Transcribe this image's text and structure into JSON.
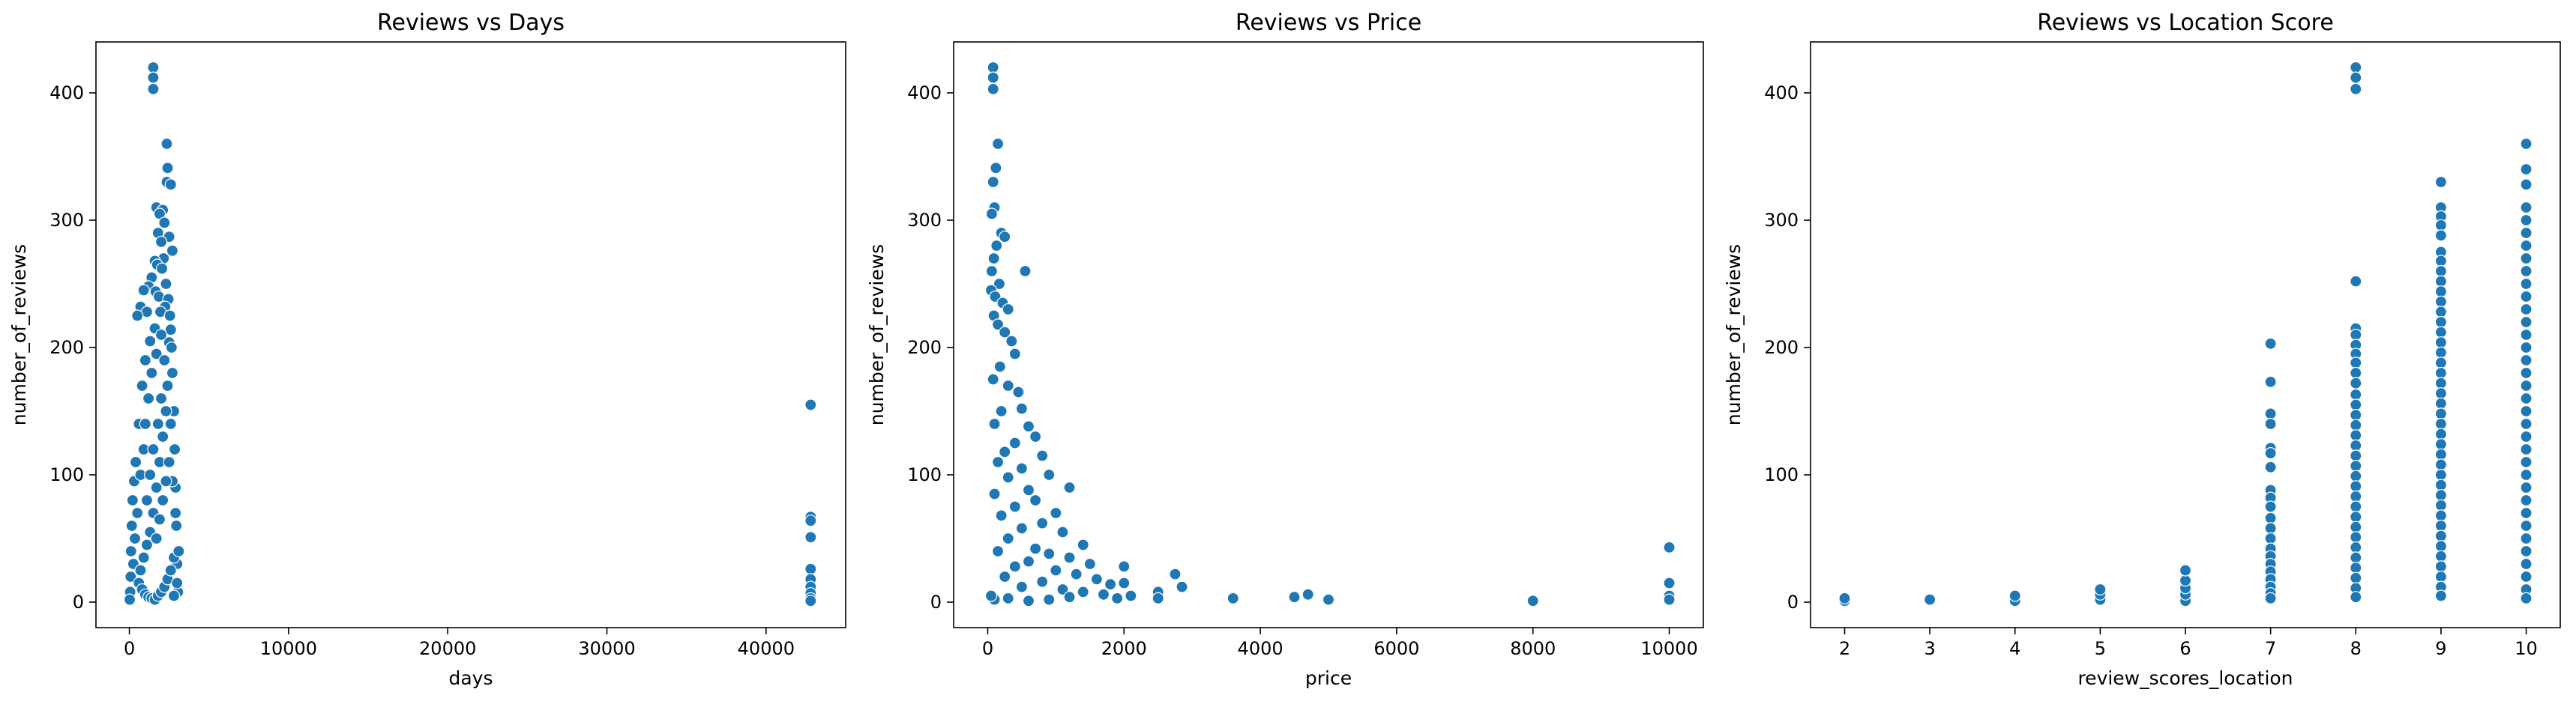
{
  "chart_data": [
    {
      "type": "scatter",
      "title": "Reviews vs Days",
      "xlabel": "days",
      "ylabel": "number_of_reviews",
      "xlim": [
        -2100,
        45000
      ],
      "ylim": [
        -20,
        440
      ],
      "xticks": [
        0,
        10000,
        20000,
        30000,
        40000
      ],
      "yticks": [
        0,
        100,
        200,
        300,
        400
      ],
      "xtick_labels": [
        "0",
        "10000",
        "20000",
        "30000",
        "40000"
      ],
      "ytick_labels": [
        "0",
        "100",
        "200",
        "300",
        "400"
      ],
      "color": "#1f77b4",
      "points": [
        [
          1500,
          420
        ],
        [
          1500,
          412
        ],
        [
          1500,
          403
        ],
        [
          2350,
          360
        ],
        [
          2400,
          341
        ],
        [
          2350,
          330
        ],
        [
          2600,
          328
        ],
        [
          1700,
          310
        ],
        [
          2100,
          308
        ],
        [
          1900,
          305
        ],
        [
          2200,
          298
        ],
        [
          1800,
          290
        ],
        [
          2500,
          287
        ],
        [
          2000,
          283
        ],
        [
          2700,
          276
        ],
        [
          2150,
          270
        ],
        [
          1600,
          268
        ],
        [
          1750,
          265
        ],
        [
          2050,
          262
        ],
        [
          1400,
          255
        ],
        [
          2300,
          250
        ],
        [
          1200,
          248
        ],
        [
          900,
          245
        ],
        [
          1650,
          244
        ],
        [
          1850,
          240
        ],
        [
          2450,
          238
        ],
        [
          2250,
          232
        ],
        [
          1950,
          228
        ],
        [
          700,
          232
        ],
        [
          1100,
          228
        ],
        [
          500,
          225
        ],
        [
          2550,
          225
        ],
        [
          2600,
          214
        ],
        [
          2500,
          204
        ],
        [
          2650,
          200
        ],
        [
          2700,
          180
        ],
        [
          2800,
          150
        ],
        [
          2850,
          120
        ],
        [
          2900,
          90
        ],
        [
          2950,
          60
        ],
        [
          3000,
          30
        ],
        [
          3050,
          8
        ],
        [
          300,
          95
        ],
        [
          200,
          80
        ],
        [
          150,
          60
        ],
        [
          100,
          40
        ],
        [
          80,
          20
        ],
        [
          50,
          8
        ],
        [
          20,
          2
        ],
        [
          400,
          110
        ],
        [
          600,
          140
        ],
        [
          800,
          170
        ],
        [
          1000,
          190
        ],
        [
          1300,
          205
        ],
        [
          1600,
          215
        ],
        [
          1400,
          180
        ],
        [
          1200,
          160
        ],
        [
          1000,
          140
        ],
        [
          900,
          120
        ],
        [
          700,
          100
        ],
        [
          500,
          70
        ],
        [
          350,
          50
        ],
        [
          250,
          30
        ],
        [
          1700,
          195
        ],
        [
          2000,
          210
        ],
        [
          2200,
          190
        ],
        [
          2400,
          170
        ],
        [
          2600,
          140
        ],
        [
          2300,
          150
        ],
        [
          2100,
          130
        ],
        [
          1900,
          110
        ],
        [
          1700,
          90
        ],
        [
          1500,
          70
        ],
        [
          1300,
          55
        ],
        [
          1100,
          45
        ],
        [
          900,
          35
        ],
        [
          700,
          25
        ],
        [
          600,
          15
        ],
        [
          800,
          10
        ],
        [
          1000,
          6
        ],
        [
          1200,
          4
        ],
        [
          1400,
          3
        ],
        [
          1600,
          2
        ],
        [
          1800,
          5
        ],
        [
          2000,
          8
        ],
        [
          2200,
          12
        ],
        [
          2400,
          18
        ],
        [
          2600,
          25
        ],
        [
          2800,
          35
        ],
        [
          1500,
          120
        ],
        [
          1800,
          140
        ],
        [
          2000,
          160
        ],
        [
          1300,
          100
        ],
        [
          1100,
          80
        ],
        [
          2500,
          110
        ],
        [
          2700,
          95
        ],
        [
          2900,
          70
        ],
        [
          3100,
          40
        ],
        [
          3000,
          15
        ],
        [
          2800,
          5
        ],
        [
          1700,
          50
        ],
        [
          1900,
          65
        ],
        [
          2100,
          80
        ],
        [
          2300,
          95
        ],
        [
          42800,
          155
        ],
        [
          42800,
          67
        ],
        [
          42800,
          64
        ],
        [
          42800,
          51
        ],
        [
          42800,
          26
        ],
        [
          42800,
          18
        ],
        [
          42800,
          12
        ],
        [
          42800,
          7
        ],
        [
          42800,
          3
        ],
        [
          42800,
          1
        ]
      ]
    },
    {
      "type": "scatter",
      "title": "Reviews vs Price",
      "xlabel": "price",
      "ylabel": "number_of_reviews",
      "xlim": [
        -500,
        10500
      ],
      "ylim": [
        -20,
        440
      ],
      "xticks": [
        0,
        2000,
        4000,
        6000,
        8000,
        10000
      ],
      "yticks": [
        0,
        100,
        200,
        300,
        400
      ],
      "xtick_labels": [
        "0",
        "2000",
        "4000",
        "6000",
        "8000",
        "10000"
      ],
      "ytick_labels": [
        "0",
        "100",
        "200",
        "300",
        "400"
      ],
      "color": "#1f77b4",
      "points": [
        [
          80,
          420
        ],
        [
          80,
          412
        ],
        [
          80,
          403
        ],
        [
          150,
          360
        ],
        [
          120,
          341
        ],
        [
          80,
          330
        ],
        [
          100,
          310
        ],
        [
          60,
          305
        ],
        [
          200,
          290
        ],
        [
          250,
          287
        ],
        [
          130,
          280
        ],
        [
          90,
          270
        ],
        [
          60,
          260
        ],
        [
          550,
          260
        ],
        [
          170,
          250
        ],
        [
          50,
          245
        ],
        [
          110,
          240
        ],
        [
          220,
          235
        ],
        [
          300,
          230
        ],
        [
          90,
          225
        ],
        [
          150,
          218
        ],
        [
          250,
          212
        ],
        [
          350,
          205
        ],
        [
          400,
          195
        ],
        [
          180,
          185
        ],
        [
          80,
          175
        ],
        [
          300,
          170
        ],
        [
          450,
          165
        ],
        [
          500,
          152
        ],
        [
          200,
          150
        ],
        [
          100,
          140
        ],
        [
          600,
          138
        ],
        [
          700,
          130
        ],
        [
          400,
          125
        ],
        [
          250,
          118
        ],
        [
          800,
          115
        ],
        [
          150,
          110
        ],
        [
          500,
          105
        ],
        [
          900,
          100
        ],
        [
          300,
          98
        ],
        [
          1200,
          90
        ],
        [
          600,
          88
        ],
        [
          100,
          85
        ],
        [
          700,
          80
        ],
        [
          400,
          75
        ],
        [
          1000,
          70
        ],
        [
          200,
          68
        ],
        [
          800,
          62
        ],
        [
          500,
          58
        ],
        [
          1100,
          55
        ],
        [
          300,
          50
        ],
        [
          1400,
          45
        ],
        [
          700,
          42
        ],
        [
          150,
          40
        ],
        [
          900,
          38
        ],
        [
          1200,
          35
        ],
        [
          600,
          32
        ],
        [
          1500,
          30
        ],
        [
          400,
          28
        ],
        [
          1000,
          25
        ],
        [
          1300,
          22
        ],
        [
          250,
          20
        ],
        [
          1600,
          18
        ],
        [
          800,
          16
        ],
        [
          1800,
          14
        ],
        [
          500,
          12
        ],
        [
          1100,
          10
        ],
        [
          1400,
          8
        ],
        [
          2000,
          28
        ],
        [
          2000,
          15
        ],
        [
          2100,
          5
        ],
        [
          1700,
          6
        ],
        [
          1900,
          3
        ],
        [
          1200,
          4
        ],
        [
          900,
          2
        ],
        [
          600,
          1
        ],
        [
          300,
          3
        ],
        [
          100,
          2
        ],
        [
          50,
          5
        ],
        [
          2500,
          8
        ],
        [
          2500,
          3
        ],
        [
          2750,
          22
        ],
        [
          2850,
          12
        ],
        [
          3600,
          3
        ],
        [
          4500,
          4
        ],
        [
          4700,
          6
        ],
        [
          5000,
          2
        ],
        [
          8000,
          1
        ],
        [
          10000,
          43
        ],
        [
          10000,
          15
        ],
        [
          10000,
          5
        ],
        [
          10000,
          2
        ]
      ]
    },
    {
      "type": "scatter",
      "title": "Reviews vs Location Score",
      "xlabel": "review_scores_location",
      "ylabel": "number_of_reviews",
      "xlim": [
        1.6,
        10.4
      ],
      "ylim": [
        -20,
        440
      ],
      "xticks": [
        2,
        3,
        4,
        5,
        6,
        7,
        8,
        9,
        10
      ],
      "yticks": [
        0,
        100,
        200,
        300,
        400
      ],
      "xtick_labels": [
        "2",
        "3",
        "4",
        "5",
        "6",
        "7",
        "8",
        "9",
        "10"
      ],
      "ytick_labels": [
        "0",
        "100",
        "200",
        "300",
        "400"
      ],
      "color": "#1f77b4",
      "points": [
        [
          2,
          1
        ],
        [
          2,
          3
        ],
        [
          3,
          2
        ],
        [
          4,
          1
        ],
        [
          4,
          5
        ],
        [
          5,
          2
        ],
        [
          5,
          6
        ],
        [
          5,
          10
        ],
        [
          6,
          1
        ],
        [
          6,
          6
        ],
        [
          6,
          11
        ],
        [
          6,
          17
        ],
        [
          6,
          25
        ],
        [
          7,
          203
        ],
        [
          7,
          173
        ],
        [
          7,
          148
        ],
        [
          7,
          140
        ],
        [
          7,
          121
        ],
        [
          7,
          117
        ],
        [
          7,
          106
        ],
        [
          7,
          88
        ],
        [
          7,
          82
        ],
        [
          7,
          75
        ],
        [
          7,
          66
        ],
        [
          7,
          58
        ],
        [
          7,
          50
        ],
        [
          7,
          42
        ],
        [
          7,
          36
        ],
        [
          7,
          30
        ],
        [
          7,
          24
        ],
        [
          7,
          18
        ],
        [
          7,
          12
        ],
        [
          7,
          7
        ],
        [
          7,
          3
        ],
        [
          8,
          420
        ],
        [
          8,
          412
        ],
        [
          8,
          403
        ],
        [
          8,
          252
        ],
        [
          8,
          215
        ],
        [
          8,
          210
        ],
        [
          8,
          202
        ],
        [
          8,
          195
        ],
        [
          8,
          188
        ],
        [
          8,
          180
        ],
        [
          8,
          172
        ],
        [
          8,
          163
        ],
        [
          8,
          155
        ],
        [
          8,
          147
        ],
        [
          8,
          139
        ],
        [
          8,
          131
        ],
        [
          8,
          123
        ],
        [
          8,
          115
        ],
        [
          8,
          107
        ],
        [
          8,
          99
        ],
        [
          8,
          91
        ],
        [
          8,
          83
        ],
        [
          8,
          75
        ],
        [
          8,
          67
        ],
        [
          8,
          59
        ],
        [
          8,
          51
        ],
        [
          8,
          43
        ],
        [
          8,
          35
        ],
        [
          8,
          27
        ],
        [
          8,
          19
        ],
        [
          8,
          11
        ],
        [
          8,
          4
        ],
        [
          9,
          330
        ],
        [
          9,
          310
        ],
        [
          9,
          303
        ],
        [
          9,
          296
        ],
        [
          9,
          288
        ],
        [
          9,
          275
        ],
        [
          9,
          268
        ],
        [
          9,
          260
        ],
        [
          9,
          252
        ],
        [
          9,
          244
        ],
        [
          9,
          236
        ],
        [
          9,
          228
        ],
        [
          9,
          220
        ],
        [
          9,
          212
        ],
        [
          9,
          204
        ],
        [
          9,
          196
        ],
        [
          9,
          188
        ],
        [
          9,
          180
        ],
        [
          9,
          172
        ],
        [
          9,
          164
        ],
        [
          9,
          156
        ],
        [
          9,
          148
        ],
        [
          9,
          140
        ],
        [
          9,
          132
        ],
        [
          9,
          124
        ],
        [
          9,
          116
        ],
        [
          9,
          108
        ],
        [
          9,
          100
        ],
        [
          9,
          92
        ],
        [
          9,
          84
        ],
        [
          9,
          76
        ],
        [
          9,
          68
        ],
        [
          9,
          60
        ],
        [
          9,
          52
        ],
        [
          9,
          44
        ],
        [
          9,
          36
        ],
        [
          9,
          28
        ],
        [
          9,
          20
        ],
        [
          9,
          12
        ],
        [
          9,
          5
        ],
        [
          10,
          360
        ],
        [
          10,
          340
        ],
        [
          10,
          328
        ],
        [
          10,
          310
        ],
        [
          10,
          300
        ],
        [
          10,
          290
        ],
        [
          10,
          280
        ],
        [
          10,
          270
        ],
        [
          10,
          260
        ],
        [
          10,
          250
        ],
        [
          10,
          240
        ],
        [
          10,
          230
        ],
        [
          10,
          220
        ],
        [
          10,
          210
        ],
        [
          10,
          200
        ],
        [
          10,
          190
        ],
        [
          10,
          180
        ],
        [
          10,
          170
        ],
        [
          10,
          160
        ],
        [
          10,
          150
        ],
        [
          10,
          140
        ],
        [
          10,
          130
        ],
        [
          10,
          120
        ],
        [
          10,
          110
        ],
        [
          10,
          100
        ],
        [
          10,
          90
        ],
        [
          10,
          80
        ],
        [
          10,
          70
        ],
        [
          10,
          60
        ],
        [
          10,
          50
        ],
        [
          10,
          40
        ],
        [
          10,
          30
        ],
        [
          10,
          20
        ],
        [
          10,
          10
        ],
        [
          10,
          3
        ]
      ]
    }
  ]
}
